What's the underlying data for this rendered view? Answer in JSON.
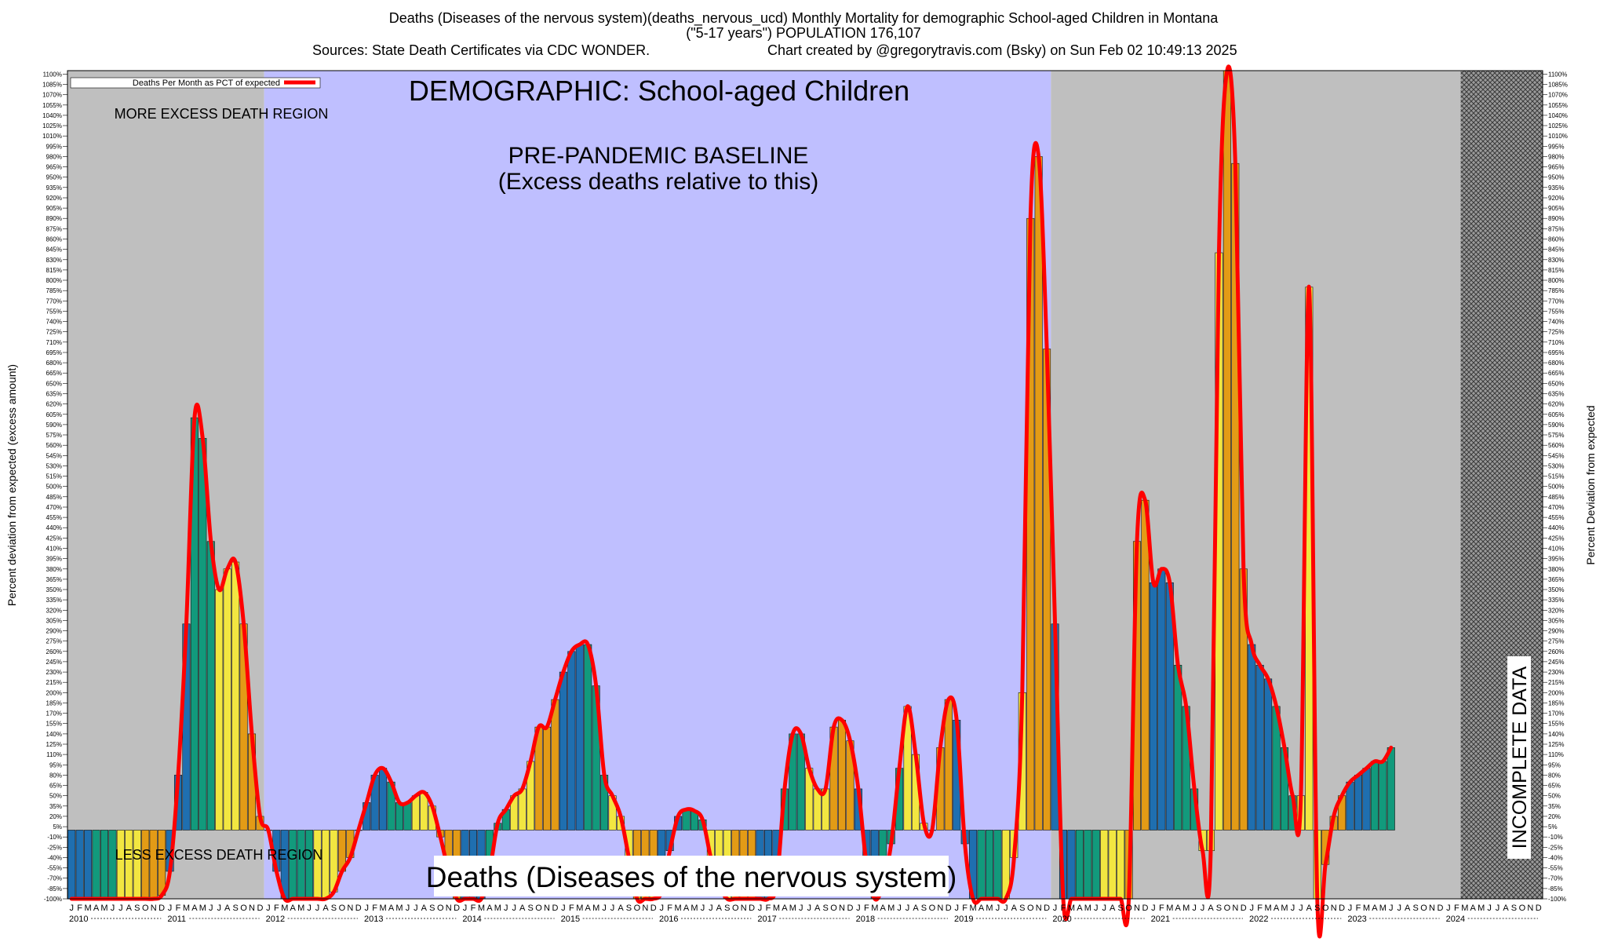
{
  "header": {
    "title_line1": "Deaths (Diseases of the nervous system)(deaths_nervous_ucd) Monthly Mortality for demographic School-aged Children in Montana",
    "title_line2": "(\"5-17 years\") POPULATION 176,107",
    "sources": "Sources: State Death Certificates via CDC WONDER.",
    "credit": "Chart created by @gregorytravis.com (Bsky) on Sun Feb 02 10:49:13 2025"
  },
  "chart_data": {
    "type": "bar",
    "title": "Deaths (Diseases of the nervous system)(deaths_nervous_ucd) Monthly Mortality for demographic School-aged Children in Montana",
    "demographic_label": "DEMOGRAPHIC: School-aged Children",
    "baseline_label_line1": "PRE-PANDEMIC BASELINE",
    "baseline_label_line2": "(Excess deaths relative to this)",
    "more_region_label": "MORE EXCESS DEATH REGION",
    "less_region_label": "LESS EXCESS DEATH REGION",
    "bottom_label": "Deaths (Diseases of the nervous system)",
    "incomplete_label": "INCOMPLETE DATA",
    "legend": "Deaths Per Month as PCT of expected",
    "ylabel_left": "Percent deviation from expected (excess amount)",
    "ylabel_right": "Percent Deviation from expected",
    "ylim": [
      -100,
      1105
    ],
    "y_tick_step": 15,
    "month_letters": [
      "J",
      "F",
      "M",
      "A",
      "M",
      "J",
      "J",
      "A",
      "S",
      "O",
      "N",
      "D"
    ],
    "years": [
      "2010",
      "2011",
      "2012",
      "2013",
      "2014",
      "2015",
      "2016",
      "2017",
      "2018",
      "2019",
      "2020",
      "2021",
      "2022",
      "2023",
      "2024"
    ],
    "baseline_years": [
      "2012",
      "2013",
      "2014",
      "2015",
      "2016",
      "2017",
      "2018",
      "2019"
    ],
    "incomplete_from": "2024-03",
    "quarter_colors": [
      "#1f6fb0",
      "#129a7c",
      "#f2e641",
      "#e39b16"
    ],
    "line_color": "#ff0000",
    "baseline_color": "#bfbfff",
    "gray_color": "#bfbfbf",
    "values": [
      -100,
      -100,
      -100,
      -100,
      -100,
      -100,
      -100,
      -100,
      -100,
      -100,
      -100,
      -95,
      -60,
      80,
      300,
      600,
      570,
      420,
      350,
      380,
      390,
      300,
      140,
      20,
      0,
      -60,
      -100,
      -100,
      -100,
      -100,
      -100,
      -100,
      -90,
      -60,
      -40,
      0,
      40,
      80,
      90,
      70,
      40,
      40,
      50,
      55,
      35,
      -10,
      -60,
      -100,
      -120,
      -110,
      -100,
      -60,
      10,
      30,
      50,
      60,
      100,
      150,
      150,
      190,
      230,
      260,
      270,
      270,
      210,
      80,
      50,
      20,
      -40,
      -110,
      -140,
      -130,
      -90,
      -30,
      20,
      30,
      28,
      15,
      -40,
      -80,
      -100,
      -100,
      -110,
      -130,
      -140,
      -120,
      -80,
      60,
      140,
      140,
      90,
      60,
      60,
      150,
      160,
      130,
      60,
      -50,
      -100,
      -80,
      -20,
      90,
      180,
      110,
      10,
      0,
      120,
      190,
      160,
      -20,
      -100,
      -100,
      -100,
      -100,
      -100,
      -40,
      200,
      890,
      980,
      700,
      300,
      -100,
      -100,
      -100,
      -100,
      -100,
      -100,
      -100,
      -100,
      -100,
      420,
      480,
      360,
      380,
      360,
      240,
      180,
      60,
      -30,
      -30,
      840,
      1110,
      970,
      380,
      270,
      240,
      220,
      180,
      120,
      50,
      50,
      790,
      -100,
      -50,
      20,
      50,
      70,
      80,
      90,
      100,
      100,
      120
    ]
  }
}
